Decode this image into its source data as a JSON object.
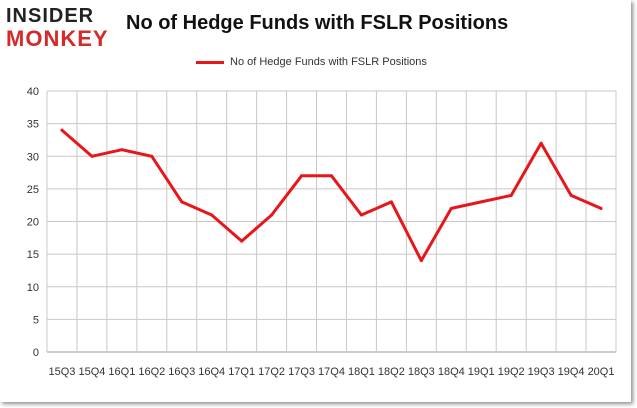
{
  "header": {
    "logo_top": "INSIDER",
    "logo_bottom": "MONKEY",
    "title": "No of Hedge Funds with FSLR Positions"
  },
  "colors": {
    "line": "#e8161b",
    "grid": "#c8c8c8",
    "logo_red": "#d42a2a"
  },
  "chart_data": {
    "type": "line",
    "title": "No of Hedge Funds with FSLR Positions",
    "xlabel": "",
    "ylabel": "",
    "ylim": [
      0,
      40
    ],
    "yticks": [
      0,
      5,
      10,
      15,
      20,
      25,
      30,
      35,
      40
    ],
    "grid": true,
    "legend_position": "top-center",
    "categories": [
      "15Q3",
      "15Q4",
      "16Q1",
      "16Q2",
      "16Q3",
      "16Q4",
      "17Q1",
      "17Q2",
      "17Q3",
      "17Q4",
      "18Q1",
      "18Q2",
      "18Q3",
      "18Q4",
      "19Q1",
      "19Q2",
      "19Q3",
      "19Q4",
      "20Q1"
    ],
    "series": [
      {
        "name": "No of Hedge Funds with FSLR Positions",
        "values": [
          34,
          30,
          31,
          30,
          23,
          21,
          17,
          21,
          27,
          27,
          21,
          23,
          14,
          22,
          23,
          24,
          32,
          24,
          22
        ]
      }
    ]
  }
}
